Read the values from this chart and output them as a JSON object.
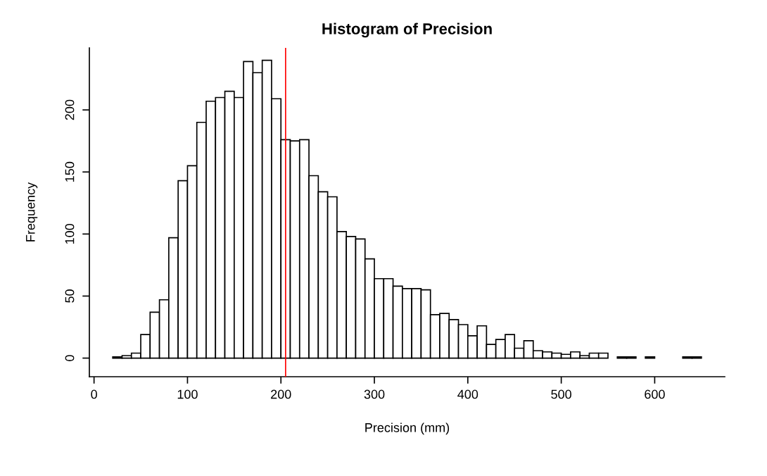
{
  "chart_data": {
    "type": "histogram",
    "title": "Histogram of Precision",
    "xlabel": "Precision (mm)",
    "ylabel": "Frequency",
    "bins": [
      20,
      30,
      40,
      50,
      60,
      70,
      80,
      90,
      100,
      110,
      120,
      130,
      140,
      150,
      160,
      170,
      180,
      190,
      200,
      210,
      220,
      230,
      240,
      250,
      260,
      270,
      280,
      290,
      300,
      310,
      320,
      330,
      340,
      350,
      360,
      370,
      380,
      390,
      400,
      410,
      420,
      430,
      440,
      450,
      460,
      470,
      480,
      490,
      500,
      510,
      520,
      530,
      540,
      550,
      560,
      570,
      580,
      590,
      600,
      610,
      620,
      630,
      640,
      650
    ],
    "values": [
      1,
      2,
      4,
      19,
      37,
      47,
      97,
      143,
      155,
      190,
      207,
      210,
      215,
      210,
      239,
      230,
      240,
      209,
      176,
      175,
      176,
      147,
      134,
      130,
      102,
      98,
      96,
      80,
      64,
      64,
      58,
      56,
      56,
      55,
      35,
      36,
      31,
      27,
      18,
      26,
      11,
      15,
      19,
      8,
      14,
      6,
      5,
      4,
      3,
      5,
      2,
      4,
      4,
      0,
      1,
      1,
      0,
      1,
      0,
      0,
      0,
      1,
      1
    ],
    "color": "#ffffff",
    "xlim": [
      -5,
      675
    ],
    "xticks": [
      0,
      100,
      200,
      300,
      400,
      500,
      600
    ],
    "ylim": [
      -15,
      250
    ],
    "yticks": [
      0,
      50,
      100,
      150,
      200
    ],
    "ref_lines": [
      {
        "axis": "x",
        "value": 205,
        "color": "#ff0000"
      }
    ],
    "grid": false
  }
}
